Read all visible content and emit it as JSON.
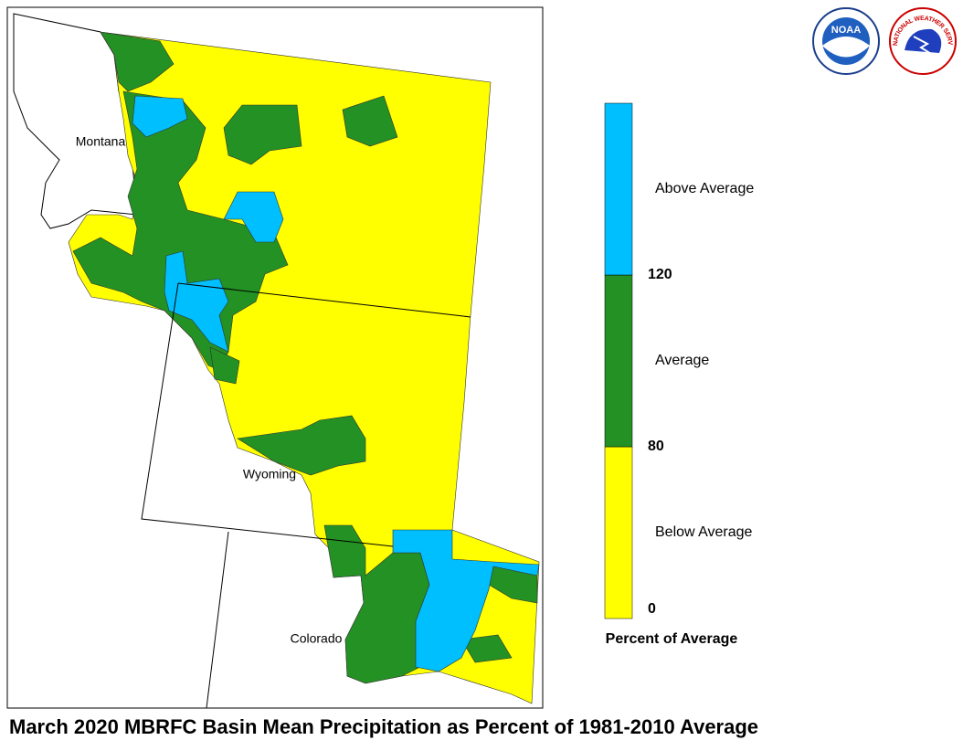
{
  "title": "March 2020 MBRFC Basin Mean Precipitation as Percent of 1981-2010 Average",
  "map": {
    "states": [
      "Montana",
      "Wyoming",
      "Colorado"
    ]
  },
  "legend": {
    "title": "Percent of Average",
    "ticks": [
      0,
      80,
      120
    ],
    "classes": [
      {
        "label": "Below Average",
        "color": "#ffff00"
      },
      {
        "label": "Average",
        "color": "#239123"
      },
      {
        "label": "Above Average",
        "color": "#00bfff"
      }
    ]
  },
  "logos": {
    "noaa": "NOAA",
    "nws": "NATIONAL WEATHER SERVICE"
  }
}
